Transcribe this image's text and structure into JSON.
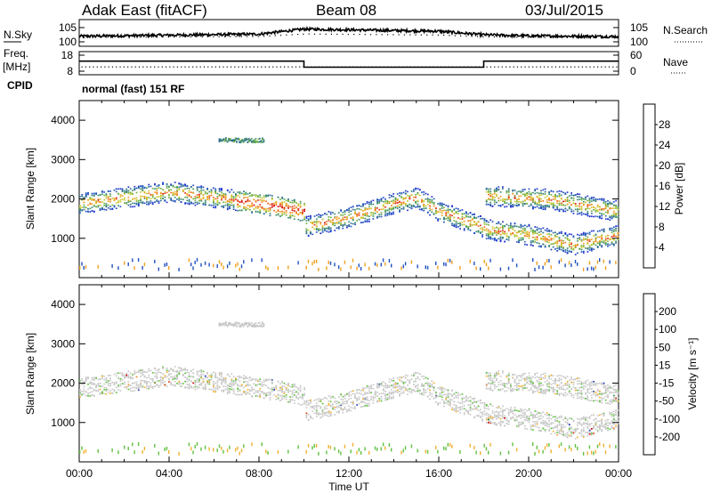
{
  "header": {
    "station": "Adak East (fitACF)",
    "beam": "Beam 08",
    "date": "03/Jul/2015"
  },
  "side_labels": {
    "nsky": "N.Sky",
    "nsearch": "N.Search",
    "freq": "Freq.",
    "freq_unit": "[MHz]",
    "nave": "Nave",
    "cpid": "CPID",
    "cpid_value": "normal (fast) 151 RF"
  },
  "colors": {
    "power": [
      "#2030d0",
      "#2050c0",
      "#2f6f90",
      "#3f8f70",
      "#70b040",
      "#c8c830",
      "#f0a020",
      "#f07020",
      "#e03020",
      "#d00000"
    ],
    "velocity": [
      "#d00000",
      "#e04010",
      "#f08020",
      "#f0b030",
      "#c8c8c8",
      "#60c040",
      "#2f8f50",
      "#305090",
      "#2030c0"
    ]
  },
  "chart_data": [
    {
      "type": "line",
      "panel": "noise",
      "left_ticks": [
        "10^5",
        "10^0"
      ],
      "right_ticks": [
        "10^5",
        "10^0"
      ],
      "series": [
        {
          "name": "N.Sky",
          "x": [
            "00:00",
            "04:00",
            "08:00",
            "10:00",
            "12:00",
            "16:00",
            "18:00",
            "20:00",
            "24:00"
          ],
          "values": [
            1.2,
            1.5,
            1.8,
            3.2,
            3.0,
            2.6,
            1.6,
            1.3,
            1.1
          ]
        }
      ]
    },
    {
      "type": "line",
      "panel": "frequency",
      "left_ticks": [
        "18",
        "8"
      ],
      "right_ticks": [
        "60",
        "0"
      ],
      "series": [
        {
          "name": "Freq.",
          "x": [
            "00:00",
            "10:00",
            "10:00",
            "18:00",
            "18:00",
            "24:00"
          ],
          "values": [
            14.3,
            14.3,
            10.5,
            10.5,
            14.3,
            14.3
          ]
        },
        {
          "name": "Nave",
          "x": [
            "00:00",
            "24:00"
          ],
          "values": [
            18,
            18
          ]
        }
      ]
    },
    {
      "type": "heatmap",
      "panel": "power",
      "ylabel": "Slant Range [km]",
      "yticks": [
        "1000",
        "2000",
        "3000",
        "4000"
      ],
      "colorbar_label": "Power [dB]",
      "colorbar_ticks": [
        "4",
        "8",
        "12",
        "16",
        "20",
        "24",
        "28"
      ],
      "bands": [
        {
          "x": [
            "00:00",
            "02:00",
            "04:00",
            "06:00",
            "08:00",
            "10:00"
          ],
          "y": [
            1900,
            2050,
            2200,
            2050,
            1900,
            1700
          ]
        },
        {
          "x": [
            "10:00",
            "12:00",
            "14:00",
            "15:00",
            "16:00",
            "18:00"
          ],
          "y": [
            1300,
            1550,
            1900,
            2050,
            1700,
            1300
          ]
        },
        {
          "x": [
            "18:00",
            "20:00",
            "22:00",
            "24:00"
          ],
          "y": [
            1250,
            1100,
            850,
            1100
          ]
        },
        {
          "x": [
            "18:00",
            "21:00",
            "24:00"
          ],
          "y": [
            2100,
            2000,
            1700
          ]
        }
      ]
    },
    {
      "type": "heatmap",
      "panel": "velocity",
      "ylabel": "Slant Range [km]",
      "yticks": [
        "1000",
        "2000",
        "3000",
        "4000"
      ],
      "xlabel": "Time UT",
      "xticks": [
        "00:00",
        "04:00",
        "08:00",
        "12:00",
        "16:00",
        "20:00",
        "00:00"
      ],
      "colorbar_label": "Velocity [m s⁻¹]",
      "colorbar_ticks": [
        "200",
        "100",
        "50",
        "15",
        "-15",
        "-50",
        "-100",
        "-200"
      ]
    }
  ]
}
